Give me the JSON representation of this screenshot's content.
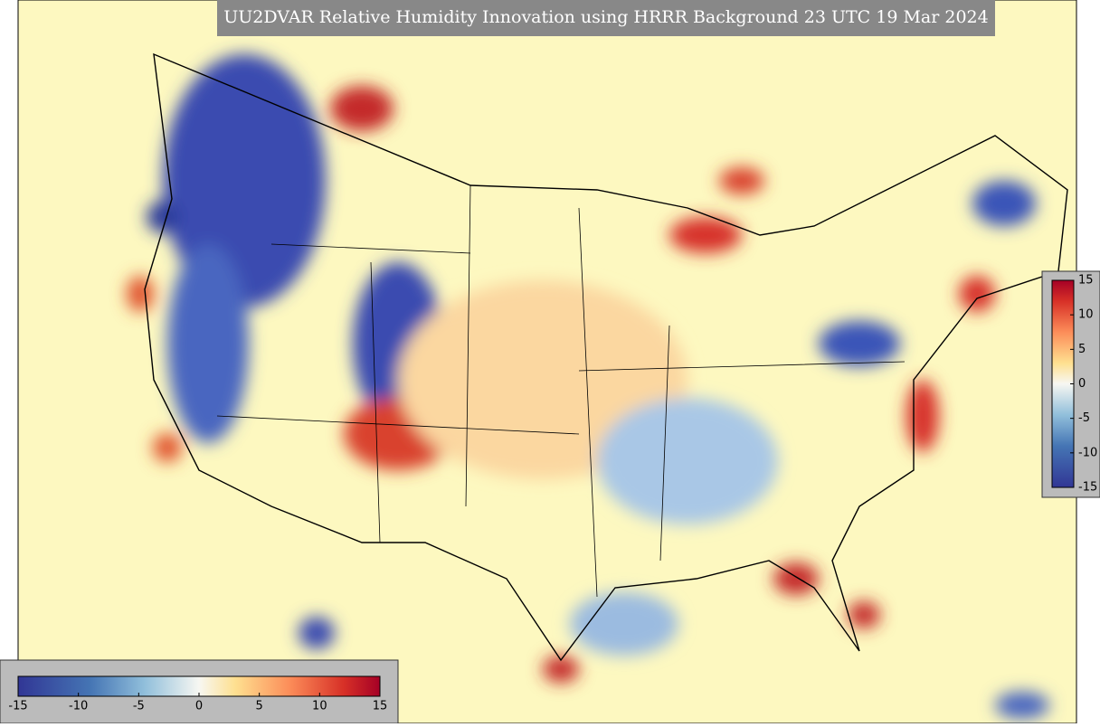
{
  "title": "UU2DVAR Relative Humidity Innovation using HRRR Background 23 UTC 19 Mar 2024",
  "colorbars": [
    {
      "orientation": "vertical",
      "lim": [
        -15,
        15
      ],
      "ticks": [
        15,
        10,
        5,
        0,
        -5,
        -10,
        -15
      ]
    },
    {
      "orientation": "horizontal",
      "lim": [
        -15,
        15
      ],
      "ticks": [
        -15,
        -10,
        -5,
        0,
        5,
        10,
        15
      ]
    }
  ]
}
